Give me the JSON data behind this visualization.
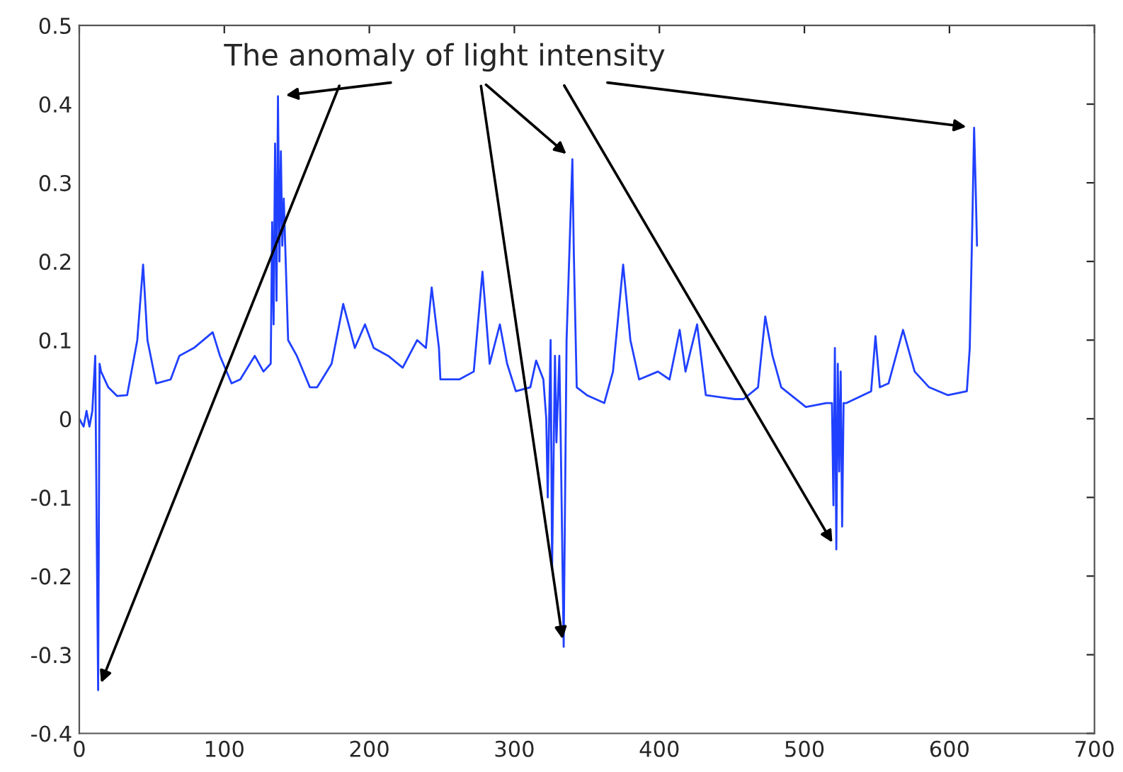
{
  "chart_data": {
    "type": "line",
    "xlim": [
      0,
      700
    ],
    "xticks": [
      0,
      100,
      200,
      300,
      400,
      500,
      600,
      700
    ],
    "ylim": [
      -0.4,
      0.5
    ],
    "yticks": [
      -0.4,
      -0.3,
      -0.2,
      -0.1,
      0,
      0.1,
      0.2,
      0.3,
      0.4,
      0.5
    ],
    "grid": false,
    "legend": false,
    "series": [
      {
        "color": "#2040ff",
        "x": [
          0,
          3,
          5,
          7,
          9,
          11,
          12,
          13,
          14,
          15,
          20,
          26,
          33,
          36,
          40,
          44,
          47,
          53,
          63,
          69,
          79,
          92,
          97,
          105,
          111,
          121,
          127,
          132,
          133,
          134,
          135,
          136,
          137,
          138,
          139,
          140,
          141,
          144,
          150,
          159,
          164,
          174,
          182,
          190,
          197,
          203,
          213,
          223,
          233,
          239,
          243,
          248,
          249,
          262,
          272,
          278,
          283,
          290,
          295,
          301,
          311,
          315,
          320,
          322,
          323,
          325,
          326,
          328,
          329,
          331,
          332,
          334,
          336,
          340,
          341,
          343,
          350,
          362,
          368,
          375,
          380,
          386,
          399,
          407,
          414,
          418,
          426,
          432,
          452,
          458,
          468,
          473,
          478,
          484,
          501,
          515,
          519,
          520,
          521,
          522,
          523,
          524,
          525,
          526,
          527,
          529,
          546,
          549,
          552,
          558,
          568,
          576,
          586,
          599,
          612,
          614,
          616,
          617,
          618,
          619
        ],
        "values": [
          0.0,
          -0.01,
          0.01,
          -0.01,
          0.01,
          0.08,
          -0.14,
          -0.345,
          0.07,
          0.06,
          0.04,
          0.029,
          0.03,
          0.06,
          0.1,
          0.196,
          0.1,
          0.045,
          0.05,
          0.08,
          0.09,
          0.11,
          0.08,
          0.045,
          0.05,
          0.08,
          0.06,
          0.07,
          0.25,
          0.12,
          0.35,
          0.15,
          0.41,
          0.2,
          0.34,
          0.22,
          0.28,
          0.1,
          0.08,
          0.04,
          0.04,
          0.07,
          0.146,
          0.09,
          0.12,
          0.09,
          0.08,
          0.065,
          0.1,
          0.09,
          0.167,
          0.09,
          0.05,
          0.05,
          0.06,
          0.187,
          0.07,
          0.12,
          0.07,
          0.035,
          0.04,
          0.074,
          0.05,
          0.0,
          -0.1,
          0.1,
          -0.19,
          0.08,
          -0.03,
          0.08,
          -0.03,
          -0.29,
          0.1,
          0.33,
          0.21,
          0.04,
          0.03,
          0.02,
          0.06,
          0.196,
          0.1,
          0.05,
          0.06,
          0.05,
          0.113,
          0.06,
          0.12,
          0.03,
          0.025,
          0.025,
          0.04,
          0.13,
          0.08,
          0.04,
          0.015,
          0.02,
          0.02,
          -0.11,
          0.09,
          -0.166,
          0.07,
          -0.067,
          0.06,
          -0.137,
          0.02,
          0.02,
          0.035,
          0.105,
          0.04,
          0.045,
          0.113,
          0.06,
          0.04,
          0.03,
          0.035,
          0.09,
          0.27,
          0.37,
          0.3,
          0.22
        ]
      }
    ],
    "annotations": [
      "The anomaly of light intensity"
    ]
  }
}
